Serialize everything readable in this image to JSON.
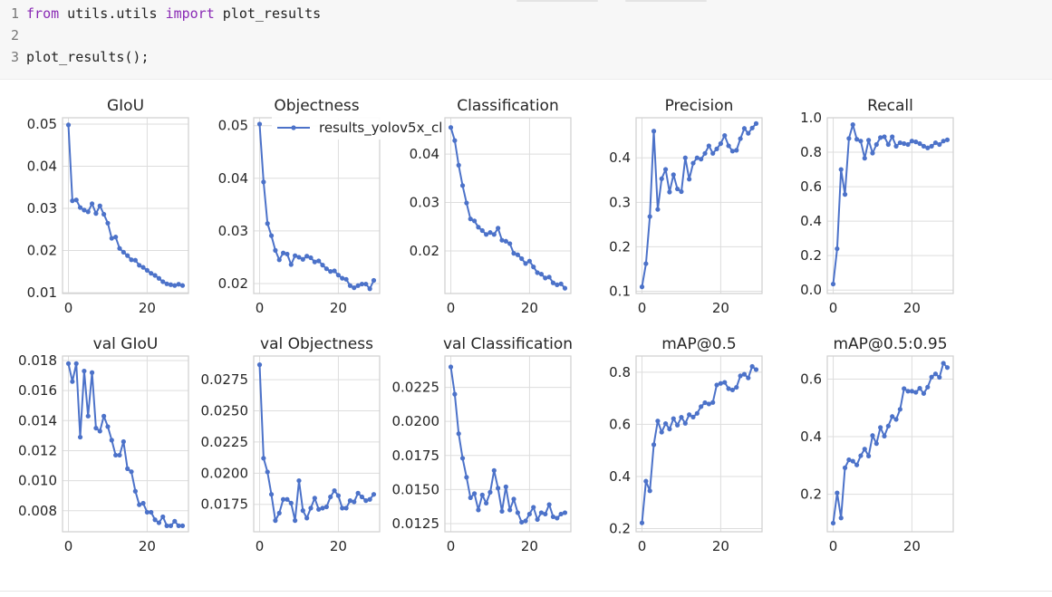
{
  "code": {
    "lines": [
      {
        "num": "1",
        "t1": "from",
        "t2": " utils.utils ",
        "t3": "import",
        "t4": " plot_results"
      },
      {
        "num": "2",
        "t1": "",
        "t2": "",
        "t3": "",
        "t4": ""
      },
      {
        "num": "3",
        "t1": "",
        "t2": "plot_results();",
        "t3": "",
        "t4": ""
      }
    ]
  },
  "theme": {
    "line_color": "#4c72c9",
    "grid_color": "#dddddd",
    "frame_color": "#cfcfcf",
    "bg": "#ffffff"
  },
  "chart_data": [
    {
      "type": "line",
      "title": "GIoU",
      "xticks": [
        0,
        20
      ],
      "xlim": [
        -1.5,
        30.5
      ],
      "yticks": [
        0.01,
        0.02,
        0.03,
        0.04,
        0.05
      ],
      "yticklabels": [
        "0.01",
        "0.02",
        "0.03",
        "0.04",
        "0.05"
      ],
      "ylim": [
        0.0098,
        0.0515
      ],
      "series": [
        {
          "values": [
            0.0498,
            0.0318,
            0.032,
            0.0302,
            0.0296,
            0.0292,
            0.0311,
            0.0288,
            0.0306,
            0.0286,
            0.0265,
            0.0229,
            0.0232,
            0.0205,
            0.0196,
            0.0188,
            0.0178,
            0.0177,
            0.0165,
            0.016,
            0.0153,
            0.0146,
            0.0141,
            0.0134,
            0.0126,
            0.0121,
            0.0119,
            0.0117,
            0.012,
            0.0117
          ]
        }
      ]
    },
    {
      "type": "line",
      "title": "Objectness",
      "xticks": [
        0,
        20
      ],
      "xlim": [
        -1.5,
        30.5
      ],
      "yticks": [
        0.02,
        0.03,
        0.04,
        0.05
      ],
      "yticklabels": [
        "0.02",
        "0.03",
        "0.04",
        "0.05"
      ],
      "ylim": [
        0.0181,
        0.0515
      ],
      "legend": {
        "label": "results_yolov5x_cl",
        "position": "top-right"
      },
      "series": [
        {
          "values": [
            0.0503,
            0.0393,
            0.0314,
            0.0291,
            0.0263,
            0.0245,
            0.0258,
            0.0256,
            0.0236,
            0.0253,
            0.025,
            0.0246,
            0.0252,
            0.0249,
            0.0241,
            0.0243,
            0.0235,
            0.0228,
            0.0223,
            0.0224,
            0.0216,
            0.021,
            0.0208,
            0.0196,
            0.0192,
            0.0196,
            0.0199,
            0.0199,
            0.019,
            0.0206
          ]
        }
      ]
    },
    {
      "type": "line",
      "title": "Classification",
      "xticks": [
        0,
        20
      ],
      "xlim": [
        -1.5,
        30.5
      ],
      "yticks": [
        0.02,
        0.03,
        0.04
      ],
      "yticklabels": [
        "0.02",
        "0.03",
        "0.04"
      ],
      "ylim": [
        0.0112,
        0.0475
      ],
      "series": [
        {
          "values": [
            0.0455,
            0.0428,
            0.0377,
            0.0335,
            0.0299,
            0.0266,
            0.0262,
            0.0249,
            0.0242,
            0.0234,
            0.0238,
            0.0234,
            0.0247,
            0.0222,
            0.022,
            0.0215,
            0.0195,
            0.0192,
            0.0184,
            0.0174,
            0.0179,
            0.0167,
            0.0155,
            0.0152,
            0.0144,
            0.0146,
            0.0134,
            0.013,
            0.0132,
            0.0123
          ]
        }
      ]
    },
    {
      "type": "line",
      "title": "Precision",
      "xticks": [
        0,
        20
      ],
      "xlim": [
        -1.5,
        30.5
      ],
      "yticks": [
        0.1,
        0.2,
        0.3,
        0.4
      ],
      "yticklabels": [
        "0.1",
        "0.2",
        "0.3",
        "0.4"
      ],
      "ylim": [
        0.095,
        0.49
      ],
      "series": [
        {
          "values": [
            0.11,
            0.162,
            0.268,
            0.46,
            0.284,
            0.353,
            0.374,
            0.323,
            0.362,
            0.33,
            0.324,
            0.4,
            0.352,
            0.388,
            0.4,
            0.397,
            0.41,
            0.427,
            0.41,
            0.42,
            0.432,
            0.45,
            0.427,
            0.415,
            0.417,
            0.443,
            0.466,
            0.455,
            0.467,
            0.477
          ]
        }
      ]
    },
    {
      "type": "line",
      "title": "Recall",
      "xticks": [
        0,
        20
      ],
      "xlim": [
        -1.5,
        30.5
      ],
      "yticks": [
        0.0,
        0.2,
        0.4,
        0.6,
        0.8,
        1.0
      ],
      "yticklabels": [
        "0.0",
        "0.2",
        "0.4",
        "0.6",
        "0.8",
        "1.0"
      ],
      "ylim": [
        -0.02,
        1.0
      ],
      "series": [
        {
          "values": [
            0.035,
            0.24,
            0.7,
            0.555,
            0.88,
            0.96,
            0.875,
            0.865,
            0.765,
            0.87,
            0.795,
            0.845,
            0.885,
            0.89,
            0.845,
            0.89,
            0.835,
            0.855,
            0.85,
            0.845,
            0.865,
            0.86,
            0.85,
            0.835,
            0.825,
            0.835,
            0.855,
            0.845,
            0.865,
            0.872
          ]
        }
      ]
    },
    {
      "type": "line",
      "title": "val GIoU",
      "xticks": [
        0,
        20
      ],
      "xlim": [
        -1.5,
        30.5
      ],
      "yticks": [
        0.008,
        0.01,
        0.012,
        0.014,
        0.016,
        0.018
      ],
      "yticklabels": [
        "0.008",
        "0.010",
        "0.012",
        "0.014",
        "0.016",
        "0.018"
      ],
      "ylim": [
        0.0066,
        0.0183
      ],
      "series": [
        {
          "values": [
            0.0178,
            0.0166,
            0.0178,
            0.0129,
            0.0173,
            0.0143,
            0.0172,
            0.0135,
            0.0133,
            0.0143,
            0.0136,
            0.0127,
            0.0117,
            0.0117,
            0.0126,
            0.0108,
            0.0106,
            0.0093,
            0.0084,
            0.0085,
            0.0079,
            0.0079,
            0.0074,
            0.0072,
            0.0076,
            0.007,
            0.007,
            0.0073,
            0.007,
            0.007
          ]
        }
      ]
    },
    {
      "type": "line",
      "title": "val Objectness",
      "xticks": [
        0,
        20
      ],
      "xlim": [
        -1.5,
        30.5
      ],
      "yticks": [
        0.0175,
        0.02,
        0.0225,
        0.025,
        0.0275
      ],
      "yticklabels": [
        "0.0175",
        "0.0200",
        "0.0225",
        "0.0250",
        "0.0275"
      ],
      "ylim": [
        0.0153,
        0.0294
      ],
      "series": [
        {
          "values": [
            0.0287,
            0.0212,
            0.0201,
            0.0183,
            0.0162,
            0.0168,
            0.0179,
            0.0179,
            0.0176,
            0.0162,
            0.0194,
            0.017,
            0.0164,
            0.0172,
            0.018,
            0.0171,
            0.0172,
            0.0173,
            0.0181,
            0.0186,
            0.0182,
            0.0172,
            0.0172,
            0.0178,
            0.0177,
            0.0184,
            0.0181,
            0.0178,
            0.0179,
            0.0183
          ]
        }
      ]
    },
    {
      "type": "line",
      "title": "val Classification",
      "xticks": [
        0,
        20
      ],
      "xlim": [
        -1.5,
        30.5
      ],
      "yticks": [
        0.0125,
        0.015,
        0.0175,
        0.02,
        0.0225
      ],
      "yticklabels": [
        "0.0125",
        "0.0150",
        "0.0175",
        "0.0200",
        "0.0225"
      ],
      "ylim": [
        0.0119,
        0.0248
      ],
      "series": [
        {
          "values": [
            0.024,
            0.022,
            0.0191,
            0.0173,
            0.0159,
            0.0144,
            0.0147,
            0.0135,
            0.0146,
            0.014,
            0.0148,
            0.0164,
            0.0151,
            0.0134,
            0.0152,
            0.0135,
            0.0143,
            0.0133,
            0.0126,
            0.0127,
            0.0132,
            0.0137,
            0.0128,
            0.0133,
            0.0132,
            0.0139,
            0.013,
            0.0129,
            0.0132,
            0.0133
          ]
        }
      ]
    },
    {
      "type": "line",
      "title": "mAP@0.5",
      "xticks": [
        0,
        20
      ],
      "xlim": [
        -1.5,
        30.5
      ],
      "yticks": [
        0.2,
        0.4,
        0.6,
        0.8
      ],
      "yticklabels": [
        "0.2",
        "0.4",
        "0.6",
        "0.8"
      ],
      "ylim": [
        0.188,
        0.862
      ],
      "series": [
        {
          "values": [
            0.222,
            0.382,
            0.345,
            0.522,
            0.613,
            0.57,
            0.603,
            0.582,
            0.622,
            0.597,
            0.627,
            0.604,
            0.637,
            0.628,
            0.642,
            0.668,
            0.683,
            0.678,
            0.684,
            0.751,
            0.757,
            0.761,
            0.737,
            0.732,
            0.742,
            0.786,
            0.792,
            0.778,
            0.822,
            0.81
          ]
        }
      ]
    },
    {
      "type": "line",
      "title": "mAP@0.5:0.95",
      "xticks": [
        0,
        20
      ],
      "xlim": [
        -1.5,
        30.5
      ],
      "yticks": [
        0.2,
        0.4,
        0.6
      ],
      "yticklabels": [
        "0.2",
        "0.4",
        "0.6"
      ],
      "ylim": [
        0.07,
        0.68
      ],
      "series": [
        {
          "values": [
            0.1,
            0.205,
            0.118,
            0.292,
            0.32,
            0.315,
            0.302,
            0.334,
            0.357,
            0.333,
            0.404,
            0.376,
            0.432,
            0.402,
            0.437,
            0.47,
            0.46,
            0.495,
            0.567,
            0.558,
            0.558,
            0.554,
            0.568,
            0.55,
            0.572,
            0.607,
            0.618,
            0.606,
            0.655,
            0.64
          ]
        }
      ]
    }
  ]
}
